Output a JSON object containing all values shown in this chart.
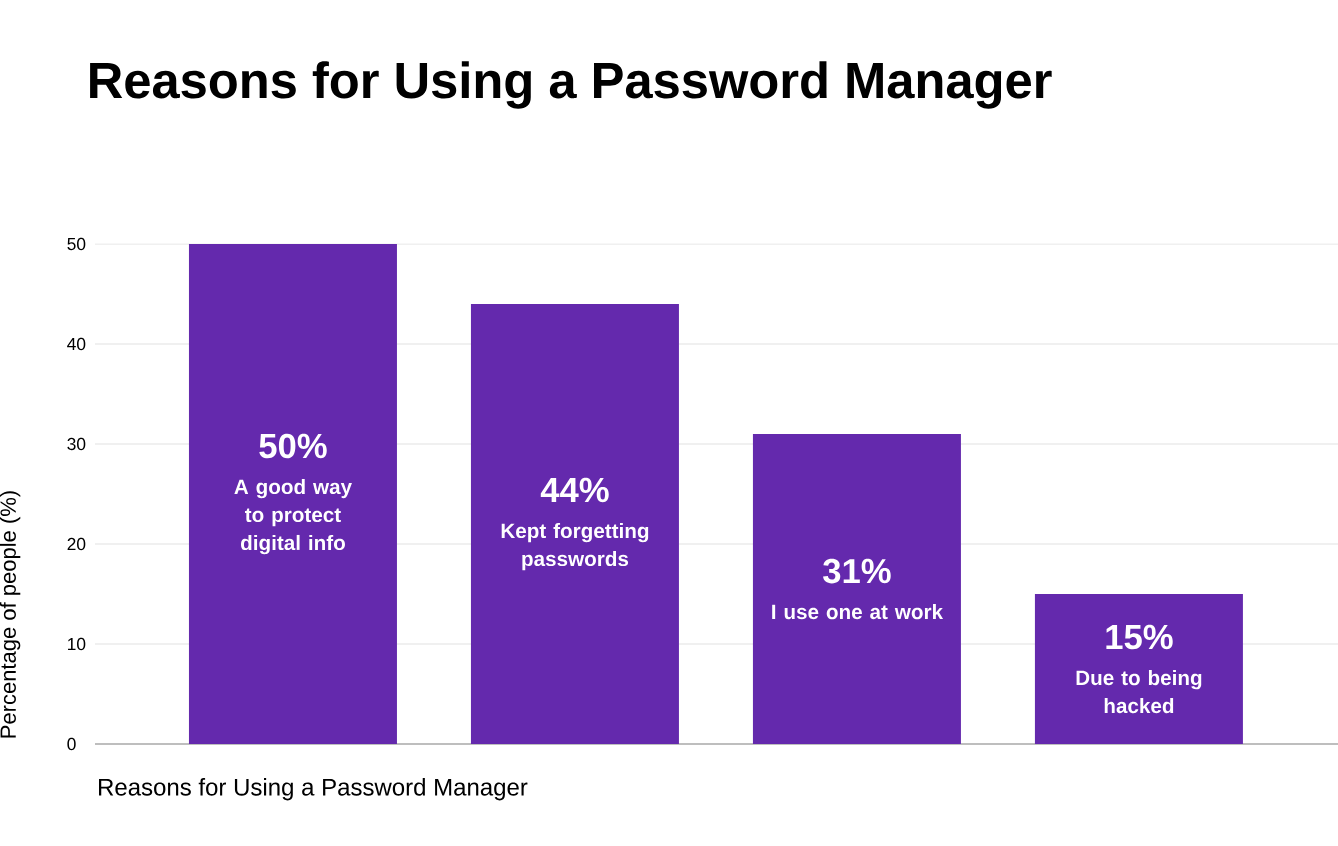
{
  "chart_data": {
    "type": "bar",
    "title": "Reasons for Using a Password Manager",
    "xlabel": "Reasons for Using a Password Manager",
    "ylabel": "Percentage of people (%)",
    "categories": [
      "A good way to protect digital info",
      "Kept forgetting passwords",
      "I use one at work",
      "Due to being hacked"
    ],
    "values": [
      50,
      44,
      31,
      15
    ],
    "value_labels": [
      "50%",
      "44%",
      "31%",
      "15%"
    ],
    "color": "#6429ad",
    "ylim": [
      0,
      50
    ],
    "yticks": [
      0,
      10,
      20,
      30,
      40,
      50
    ],
    "grid": "y",
    "tick_labels": "y"
  }
}
